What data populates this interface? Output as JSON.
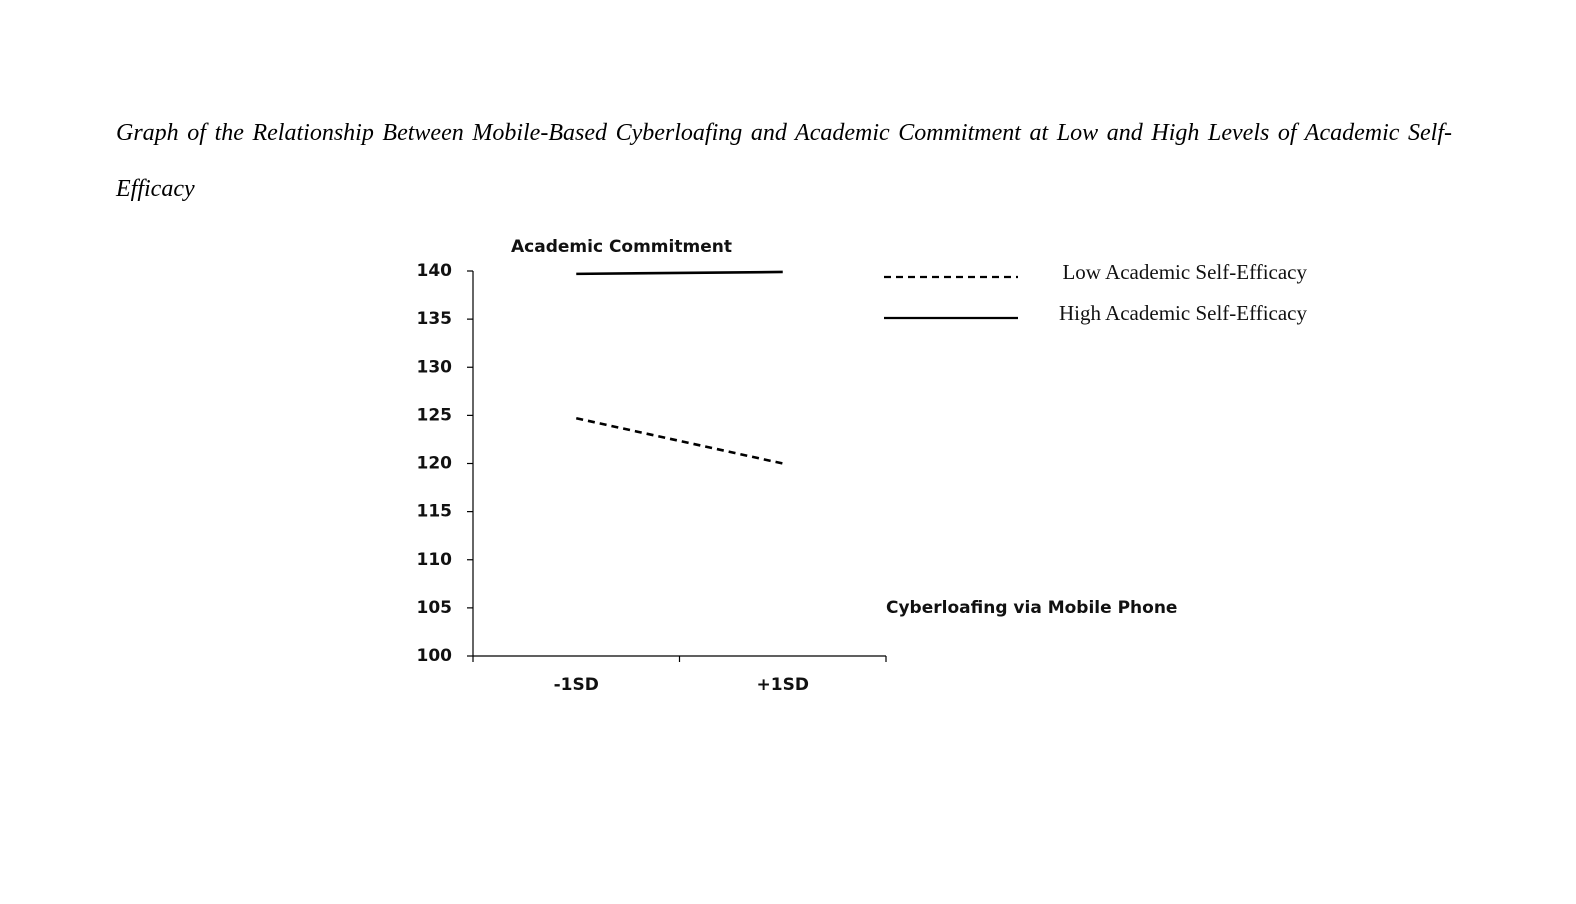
{
  "chart_data": {
    "type": "line",
    "title": "Graph of the Relationship Between Mobile-Based Cyberloafing and Academic Commitment at Low and High Levels of Academic Self-Efficacy",
    "y_label": "Academic Commitment",
    "x_label": "Cyberloafing via Mobile Phone",
    "categories": [
      "-1SD",
      "+1SD"
    ],
    "series": [
      {
        "name": "Low Academic Self-Efficacy",
        "color": "#000000",
        "line_style": "dashed",
        "values": [
          124.7,
          120.0
        ]
      },
      {
        "name": "High Academic Self-Efficacy",
        "color": "#000000",
        "line_style": "solid",
        "values": [
          139.7,
          139.9
        ]
      }
    ],
    "ylim": [
      100,
      140
    ],
    "yticks": [
      100,
      105,
      110,
      115,
      120,
      125,
      130,
      135,
      140
    ],
    "grid": false,
    "legend": "upper right"
  }
}
